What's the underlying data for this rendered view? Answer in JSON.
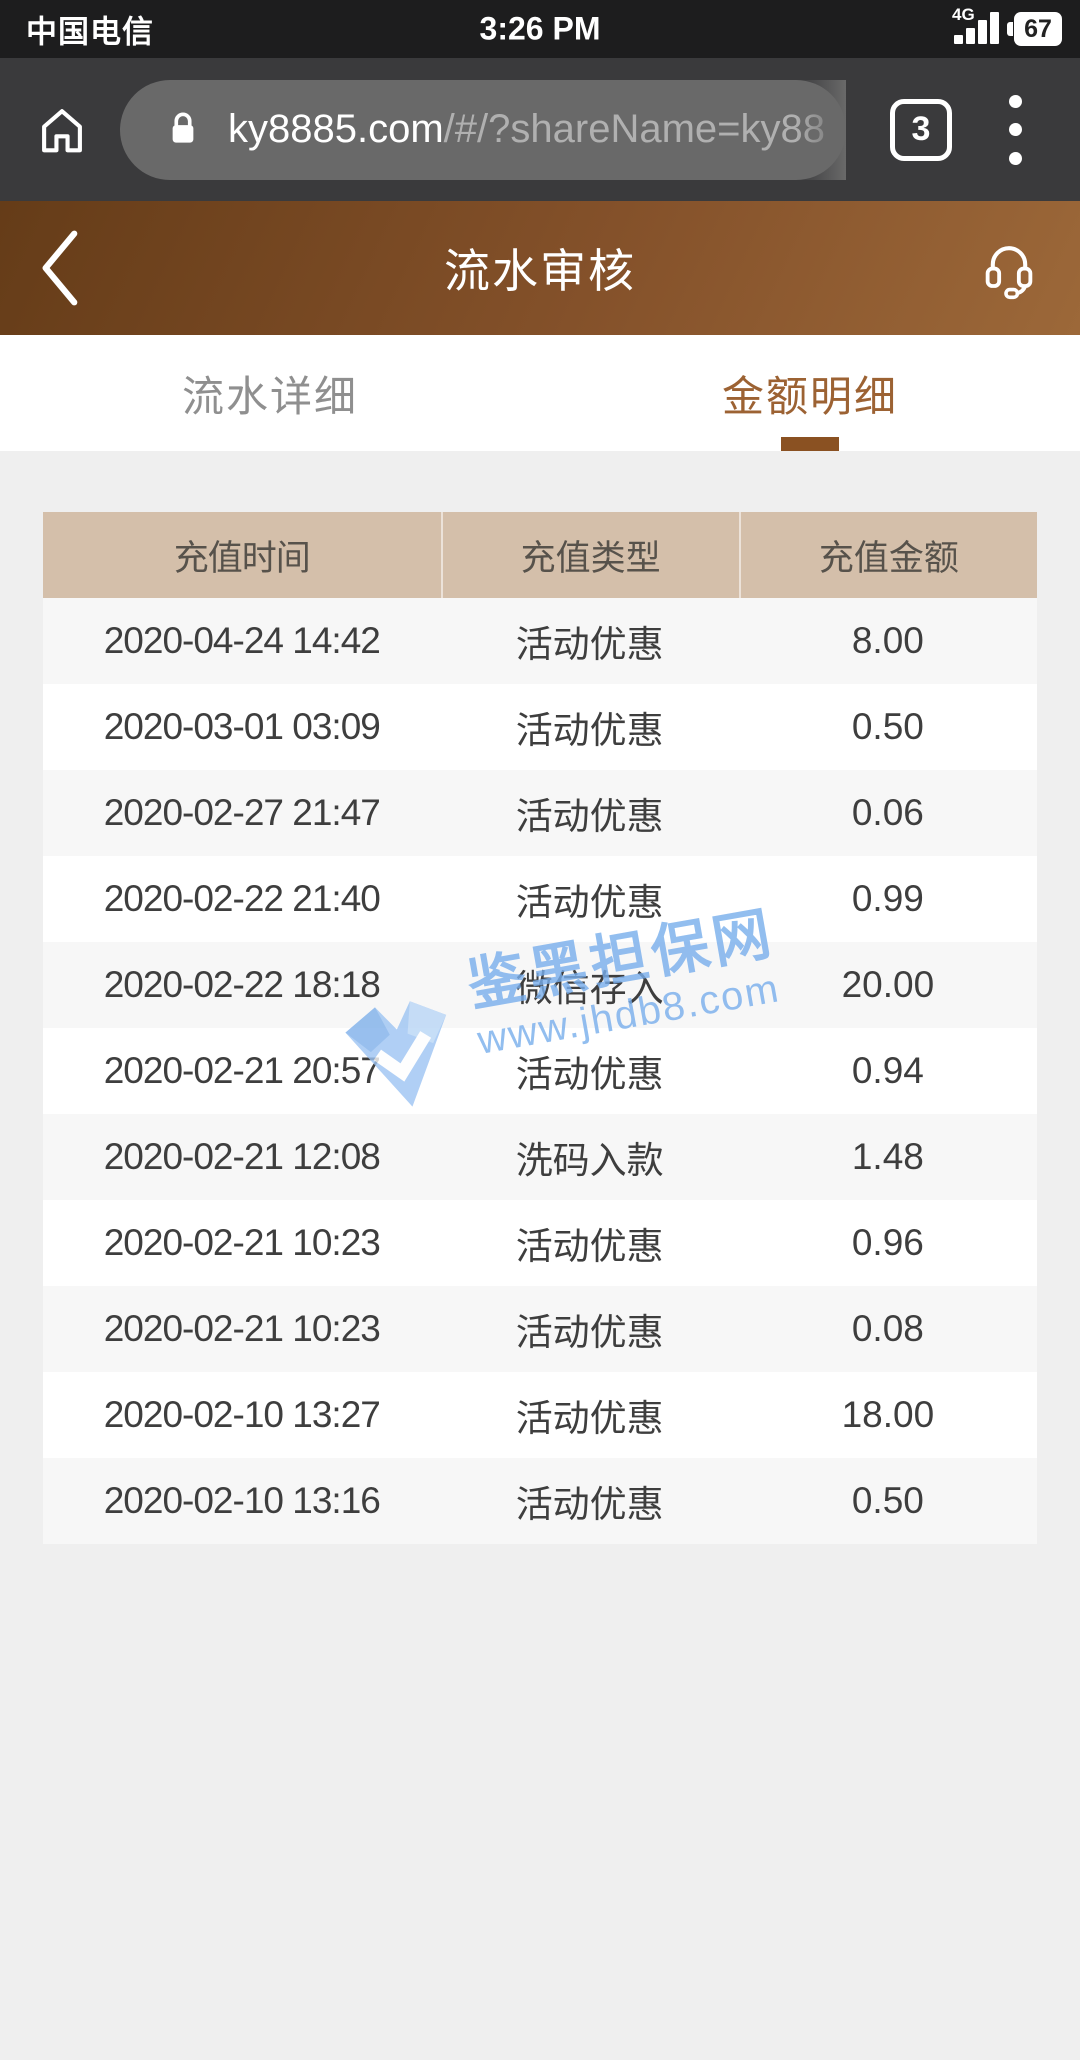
{
  "status_bar": {
    "carrier": "中国电信",
    "time": "3:26 PM",
    "network": "4G",
    "battery_level": "67"
  },
  "browser": {
    "url_host": "ky8885.com",
    "url_rest": "/#/?shareName=ky88",
    "tab_count": "3"
  },
  "app_header": {
    "title": "流水审核"
  },
  "tabs": [
    {
      "label": "流水详细",
      "active": false
    },
    {
      "label": "金额明细",
      "active": true
    }
  ],
  "table": {
    "headers": [
      "充值时间",
      "充值类型",
      "充值金额"
    ],
    "rows": [
      {
        "time": "2020-04-24 14:42",
        "type": "活动优惠",
        "amount": "8.00"
      },
      {
        "time": "2020-03-01 03:09",
        "type": "活动优惠",
        "amount": "0.50"
      },
      {
        "time": "2020-02-27 21:47",
        "type": "活动优惠",
        "amount": "0.06"
      },
      {
        "time": "2020-02-22 21:40",
        "type": "活动优惠",
        "amount": "0.99"
      },
      {
        "time": "2020-02-22 18:18",
        "type": "微信存入",
        "amount": "20.00"
      },
      {
        "time": "2020-02-21 20:57",
        "type": "活动优惠",
        "amount": "0.94"
      },
      {
        "time": "2020-02-21 12:08",
        "type": "洗码入款",
        "amount": "1.48"
      },
      {
        "time": "2020-02-21 10:23",
        "type": "活动优惠",
        "amount": "0.96"
      },
      {
        "time": "2020-02-21 10:23",
        "type": "活动优惠",
        "amount": "0.08"
      },
      {
        "time": "2020-02-10 13:27",
        "type": "活动优惠",
        "amount": "18.00"
      },
      {
        "time": "2020-02-10 13:16",
        "type": "活动优惠",
        "amount": "0.50"
      }
    ]
  },
  "watermark": {
    "line1": "鉴黑担保网",
    "line2": "www.jhdb8.com"
  },
  "colors": {
    "status_bar_bg": "#1d1d1e",
    "toolbar_bg": "#3a3a3c",
    "url_pill_bg": "#696969",
    "header_brown_dark": "#653c18",
    "header_brown_light": "#9c6839",
    "active_tab_text": "#9c6233",
    "active_tab_underline": "#8a5122",
    "table_header_bg": "#d4bfaa",
    "row_alt_bg": "#f7f7f7",
    "page_bg": "#efefef",
    "watermark_blue": "#78aeec"
  }
}
